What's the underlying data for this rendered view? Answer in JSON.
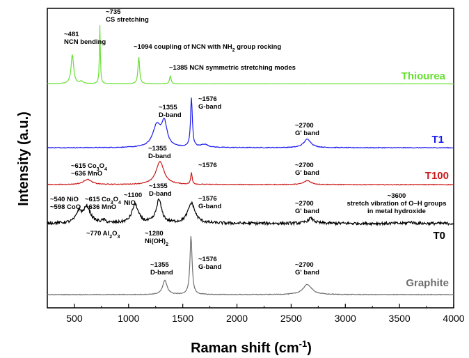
{
  "chart_data": {
    "type": "line",
    "xlabel": "Raman shift (cm",
    "xlabel_sup": "-1",
    "xlabel_close": ")",
    "ylabel": "Intensity (a.u.)",
    "xlim": [
      250,
      4000
    ],
    "xticks": [
      500,
      1000,
      1500,
      2000,
      2500,
      3000,
      3500,
      4000
    ],
    "grid": false,
    "series": [
      {
        "name": "Thiourea",
        "color": "#66e033",
        "baseline": 0.04,
        "noise": 0.004,
        "peaks": [
          [
            481,
            1.0,
            14
          ],
          [
            565,
            0.08,
            18
          ],
          [
            735,
            2.0,
            5
          ],
          [
            1094,
            0.92,
            9
          ],
          [
            1385,
            0.28,
            8
          ]
        ]
      },
      {
        "name": "T1",
        "color": "#1a1aee",
        "baseline": 0.02,
        "noise": 0.012,
        "peaks": [
          [
            1260,
            0.7,
            45
          ],
          [
            1330,
            0.75,
            30
          ],
          [
            1580,
            1.6,
            10
          ],
          [
            1700,
            0.1,
            40
          ],
          [
            2650,
            0.28,
            40
          ]
        ]
      },
      {
        "name": "T100",
        "color": "#cc1a1a",
        "baseline": 0.02,
        "noise": 0.012,
        "peaks": [
          [
            620,
            0.17,
            45
          ],
          [
            1290,
            0.75,
            45
          ],
          [
            1580,
            0.38,
            8
          ],
          [
            2650,
            0.13,
            40
          ]
        ]
      },
      {
        "name": "T0",
        "color": "#000000",
        "baseline": 0.02,
        "noise": 0.035,
        "peaks": [
          [
            540,
            0.25,
            30
          ],
          [
            615,
            0.38,
            40
          ],
          [
            770,
            0.06,
            20
          ],
          [
            1060,
            0.45,
            35
          ],
          [
            1280,
            0.55,
            30
          ],
          [
            1580,
            0.48,
            40
          ],
          [
            2680,
            0.12,
            35
          ],
          [
            3600,
            0.04,
            20
          ]
        ]
      },
      {
        "name": "Graphite",
        "color": "#6e6e6e",
        "baseline": 0.02,
        "noise": 0.01,
        "peaks": [
          [
            1335,
            0.42,
            25
          ],
          [
            1576,
            1.75,
            12
          ],
          [
            2650,
            0.3,
            50
          ]
        ]
      }
    ],
    "annotations": [
      {
        "id": "ann-481",
        "series": "Thiourea",
        "x": 481,
        "lines": [
          "~481",
          "NCN bending"
        ]
      },
      {
        "id": "ann-735",
        "series": "Thiourea",
        "x": 735,
        "lines": [
          "~735",
          "CS stretching"
        ]
      },
      {
        "id": "ann-1094",
        "series": "Thiourea",
        "x": 1094,
        "lines": [
          "~1094 coupling of NCN with NH",
          "2",
          " group rocking"
        ]
      },
      {
        "id": "ann-1385",
        "series": "Thiourea",
        "x": 1385,
        "lines": [
          "~1385 NCN symmetric stretching modes"
        ]
      },
      {
        "id": "ann-t1-d",
        "series": "T1",
        "x": 1355,
        "lines": [
          "~1355",
          "D-band"
        ]
      },
      {
        "id": "ann-t1-g",
        "series": "T1",
        "x": 1576,
        "lines": [
          "~1576",
          "G-band"
        ]
      },
      {
        "id": "ann-t1-g2",
        "series": "T1",
        "x": 2700,
        "lines": [
          "~2700",
          "G' band"
        ]
      },
      {
        "id": "ann-t100-co",
        "series": "T100",
        "x": 615,
        "lines": [
          "~615 Co",
          "3",
          "O",
          "4",
          "~636 MnO"
        ]
      },
      {
        "id": "ann-t100-d",
        "series": "T100",
        "x": 1355,
        "lines": [
          "~1355",
          "D-band"
        ]
      },
      {
        "id": "ann-t100-g",
        "series": "T100",
        "x": 1576,
        "lines": [
          "~1576"
        ]
      },
      {
        "id": "ann-t100-g2",
        "series": "T100",
        "x": 2700,
        "lines": [
          "~2700",
          "G' band"
        ]
      },
      {
        "id": "ann-t0-nio",
        "series": "T0",
        "x": 540,
        "lines": [
          "~540 NiO",
          "~598 CoO"
        ]
      },
      {
        "id": "ann-t0-co",
        "series": "T0",
        "x": 615,
        "lines": [
          "~615 Co",
          "3",
          "O",
          "4",
          "~636 MnO"
        ]
      },
      {
        "id": "ann-t0-1100",
        "series": "T0",
        "x": 1100,
        "lines": [
          "~1100",
          "NiO"
        ]
      },
      {
        "id": "ann-t0-d",
        "series": "T0",
        "x": 1355,
        "lines": [
          "~1355",
          "D-band"
        ]
      },
      {
        "id": "ann-t0-g",
        "series": "T0",
        "x": 1576,
        "lines": [
          "~1576",
          "G-band"
        ]
      },
      {
        "id": "ann-t0-g2",
        "series": "T0",
        "x": 2700,
        "lines": [
          "~2700",
          "G' band"
        ]
      },
      {
        "id": "ann-t0-3600",
        "series": "T0",
        "x": 3600,
        "lines": [
          "~3600",
          "stretch vibration of O–H groups",
          "in metal hydroxide"
        ]
      },
      {
        "id": "ann-t0-770",
        "series": "T0",
        "x": 770,
        "lines": [
          "~770 Al",
          "2",
          "O",
          "3"
        ]
      },
      {
        "id": "ann-t0-1280",
        "series": "T0",
        "x": 1280,
        "lines": [
          "~1280",
          "Ni(OH)",
          "2"
        ]
      },
      {
        "id": "ann-gr-d",
        "series": "Graphite",
        "x": 1355,
        "lines": [
          "~1355",
          "D-band"
        ]
      },
      {
        "id": "ann-gr-g",
        "series": "Graphite",
        "x": 1576,
        "lines": [
          "~1576",
          "G-band"
        ]
      },
      {
        "id": "ann-gr-g2",
        "series": "Graphite",
        "x": 2700,
        "lines": [
          "~2700",
          "G' band"
        ]
      }
    ]
  }
}
